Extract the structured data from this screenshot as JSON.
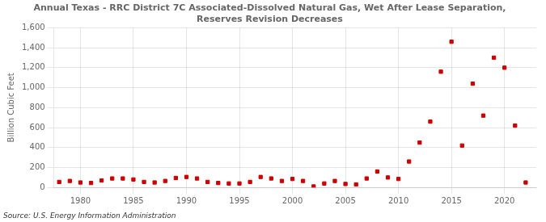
{
  "chart_data": {
    "type": "scatter",
    "title": "Annual Texas - RRC District 7C Associated-Dissolved Natural Gas, Wet After Lease Separation,\nReserves Revision Decreases",
    "ylabel": "Billion Cubic Feet",
    "annotations": [
      "Source: U.S. Energy Information Administration"
    ],
    "color": "#cc0000",
    "marker": "square",
    "grid": true,
    "xlim": [
      1977.5,
      2023
    ],
    "xticks": [
      1980,
      1985,
      1990,
      1995,
      2000,
      2005,
      2010,
      2015,
      2020
    ],
    "ylim": [
      0,
      1600
    ],
    "yticks": [
      0,
      200,
      400,
      600,
      800,
      {
        "value": 1000,
        "label": "1,000"
      },
      {
        "value": 1200,
        "label": "1,200"
      },
      {
        "value": 1400,
        "label": "1,400"
      },
      {
        "value": 1600,
        "label": "1,600"
      }
    ],
    "x": [
      1978,
      1979,
      1980,
      1981,
      1982,
      1983,
      1984,
      1985,
      1986,
      1987,
      1988,
      1989,
      1990,
      1991,
      1992,
      1993,
      1994,
      1995,
      1996,
      1997,
      1998,
      1999,
      2000,
      2001,
      2002,
      2003,
      2004,
      2005,
      2006,
      2007,
      2008,
      2009,
      2010,
      2011,
      2012,
      2013,
      2014,
      2015,
      2016,
      2017,
      2018,
      2019,
      2020,
      2021,
      2022
    ],
    "values": [
      55,
      65,
      50,
      45,
      70,
      90,
      90,
      80,
      55,
      50,
      65,
      95,
      105,
      90,
      55,
      45,
      40,
      40,
      55,
      105,
      90,
      65,
      85,
      65,
      10,
      40,
      65,
      35,
      30,
      90,
      160,
      100,
      85,
      260,
      450,
      660,
      1160,
      1460,
      420,
      1040,
      720,
      1300,
      1200,
      620,
      50
    ]
  }
}
